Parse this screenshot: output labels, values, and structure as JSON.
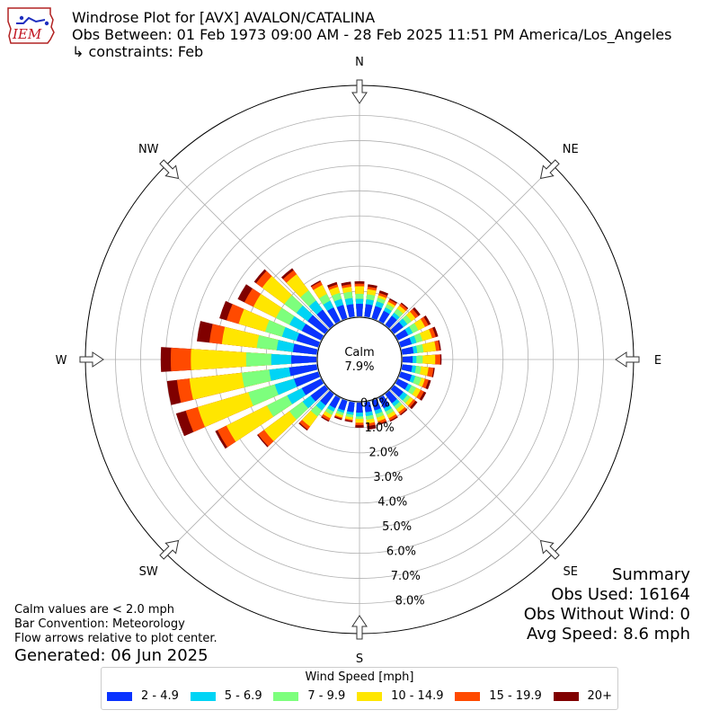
{
  "logo": {
    "text": "IEM",
    "icon": "iowa-state-outline-logo"
  },
  "header": {
    "title": "Windrose Plot for [AVX] AVALON/CATALINA",
    "obs_between": "Obs Between: 01 Feb 1973 09:00 AM - 28 Feb 2025 11:51 PM America/Los_Angeles",
    "constraints": "↳ constraints: Feb"
  },
  "compass": {
    "N": "N",
    "NE": "NE",
    "E": "E",
    "SE": "SE",
    "S": "S",
    "SW": "SW",
    "W": "W",
    "NW": "NW"
  },
  "calm": {
    "label": "Calm",
    "value": "7.9%"
  },
  "notes": {
    "calm_note": "Calm values are < 2.0 mph",
    "bar_convention": "Bar Convention: Meteorology",
    "flow_note": "Flow arrows relative to plot center.",
    "generated": "Generated: 06 Jun 2025"
  },
  "summary": {
    "title": "Summary",
    "obs_used": "Obs Used: 16164",
    "obs_without_wind": "Obs Without Wind: 0",
    "avg_speed": "Avg Speed: 8.6 mph"
  },
  "chart_data": {
    "type": "windrose",
    "units": "percent of observations",
    "calm_percent": 7.9,
    "radial_ticks": [
      "0.0%",
      "1.0%",
      "2.0%",
      "3.0%",
      "4.0%",
      "5.0%",
      "6.0%",
      "7.0%",
      "8.0%"
    ],
    "rlim": [
      0,
      9.2
    ],
    "grid": true,
    "legend_title": "Wind Speed [mph]",
    "legend_position": "bottom-center",
    "speed_bins": [
      {
        "label": "2 - 4.9",
        "color": "#0a33ff"
      },
      {
        "label": "5 - 6.9",
        "color": "#00d4f5"
      },
      {
        "label": "7 - 9.9",
        "color": "#7dff7d"
      },
      {
        "label": "10 - 14.9",
        "color": "#ffe600"
      },
      {
        "label": "15 - 19.9",
        "color": "#ff4a00"
      },
      {
        "label": "20+",
        "color": "#800000"
      }
    ],
    "direction_step_deg": 10,
    "directions_deg": [
      0,
      10,
      20,
      30,
      40,
      50,
      60,
      70,
      80,
      90,
      100,
      110,
      120,
      130,
      140,
      150,
      160,
      170,
      180,
      190,
      200,
      210,
      220,
      230,
      240,
      250,
      260,
      270,
      280,
      290,
      300,
      310,
      320,
      330,
      340,
      350
    ],
    "cumulative_percent": [
      [
        0.5,
        0.7,
        0.9,
        1.2,
        1.3,
        1.4
      ],
      [
        0.5,
        0.7,
        0.9,
        1.1,
        1.2,
        1.3
      ],
      [
        0.5,
        0.7,
        0.85,
        0.95,
        1.05,
        1.15
      ],
      [
        0.45,
        0.6,
        0.75,
        0.85,
        0.95,
        1.0
      ],
      [
        0.45,
        0.6,
        0.8,
        0.95,
        1.05,
        1.1
      ],
      [
        0.45,
        0.65,
        0.85,
        1.05,
        1.2,
        1.3
      ],
      [
        0.45,
        0.65,
        0.9,
        1.2,
        1.35,
        1.45
      ],
      [
        0.45,
        0.65,
        0.9,
        1.3,
        1.45,
        1.55
      ],
      [
        0.45,
        0.6,
        0.85,
        1.35,
        1.5,
        1.55
      ],
      [
        0.4,
        0.55,
        0.8,
        1.3,
        1.5,
        1.55
      ],
      [
        0.4,
        0.55,
        0.75,
        1.05,
        1.25,
        1.3
      ],
      [
        0.45,
        0.6,
        0.85,
        1.0,
        1.15,
        1.25
      ],
      [
        0.45,
        0.6,
        0.8,
        1.0,
        1.15,
        1.25
      ],
      [
        0.45,
        0.65,
        0.8,
        0.95,
        1.05,
        1.15
      ],
      [
        0.45,
        0.6,
        0.75,
        0.9,
        1.0,
        1.05
      ],
      [
        0.45,
        0.6,
        0.75,
        0.9,
        1.0,
        1.05
      ],
      [
        0.4,
        0.55,
        0.7,
        0.85,
        0.95,
        1.0
      ],
      [
        0.4,
        0.55,
        0.7,
        0.85,
        0.95,
        1.1
      ],
      [
        0.4,
        0.55,
        0.65,
        0.8,
        0.9,
        1.0
      ],
      [
        0.4,
        0.5,
        0.6,
        0.7,
        0.75,
        0.8
      ],
      [
        0.4,
        0.5,
        0.6,
        0.7,
        0.75,
        0.8
      ],
      [
        0.45,
        0.6,
        0.75,
        0.9,
        1.0,
        1.05
      ],
      [
        0.55,
        0.8,
        1.1,
        1.6,
        1.75,
        1.8
      ],
      [
        0.7,
        1.1,
        1.75,
        3.0,
        3.3,
        3.35
      ],
      [
        0.85,
        1.5,
        2.4,
        4.2,
        4.6,
        4.7
      ],
      [
        1.0,
        1.8,
        2.9,
        5.0,
        5.5,
        5.9
      ],
      [
        1.1,
        1.9,
        3.0,
        5.1,
        5.6,
        6.0
      ],
      [
        1.0,
        1.8,
        2.8,
        5.0,
        5.8,
        6.2
      ],
      [
        0.95,
        1.6,
        2.4,
        3.8,
        4.3,
        4.8
      ],
      [
        0.9,
        1.5,
        2.2,
        3.3,
        3.8,
        4.1
      ],
      [
        0.85,
        1.4,
        2.0,
        3.0,
        3.4,
        3.7
      ],
      [
        0.85,
        1.4,
        2.0,
        3.1,
        3.4,
        3.5
      ],
      [
        0.75,
        1.2,
        1.7,
        2.5,
        2.7,
        2.8
      ],
      [
        0.6,
        0.9,
        1.2,
        1.6,
        1.75,
        1.8
      ],
      [
        0.55,
        0.8,
        1.05,
        1.3,
        1.4,
        1.5
      ],
      [
        0.5,
        0.75,
        1.0,
        1.2,
        1.3,
        1.4
      ]
    ]
  }
}
